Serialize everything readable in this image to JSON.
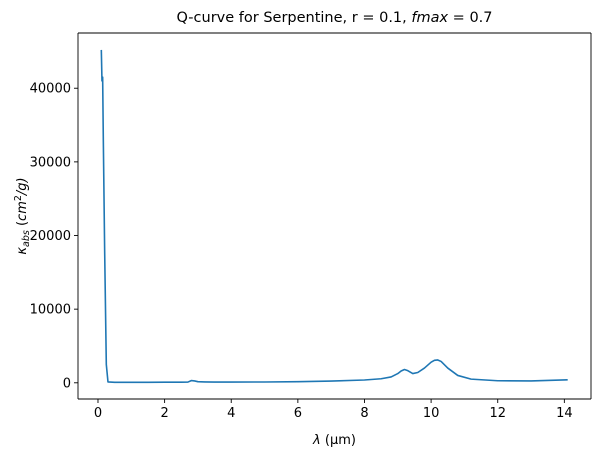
{
  "chart_data": {
    "type": "line",
    "title": "Q-curve for Serpentine, r = 0.1, ",
    "title_italic": "fmax",
    "title_tail": " = 0.7",
    "xlabel_symbol": "λ",
    "xlabel_unit": " (μm)",
    "ylabel_symbol": "κ",
    "ylabel_sub": "abs",
    "ylabel_unit_open": " (",
    "ylabel_unit_italic": "cm",
    "ylabel_unit_sup": "2",
    "ylabel_unit_close": "/g)",
    "xlim": [
      -0.6,
      14.8
    ],
    "ylim": [
      -2200,
      47500
    ],
    "grid": false,
    "line_color": "#1f77b4",
    "x_ticks": [
      {
        "value": 0,
        "label": "0"
      },
      {
        "value": 2,
        "label": "2"
      },
      {
        "value": 4,
        "label": "4"
      },
      {
        "value": 6,
        "label": "6"
      },
      {
        "value": 8,
        "label": "8"
      },
      {
        "value": 10,
        "label": "10"
      },
      {
        "value": 12,
        "label": "12"
      },
      {
        "value": 14,
        "label": "14"
      }
    ],
    "y_ticks": [
      {
        "value": 0,
        "label": "0"
      },
      {
        "value": 10000,
        "label": "10000"
      },
      {
        "value": 20000,
        "label": "20000"
      },
      {
        "value": 30000,
        "label": "30000"
      },
      {
        "value": 40000,
        "label": "40000"
      }
    ],
    "series": [
      {
        "x": [
          0.1,
          0.12,
          0.14,
          0.16,
          0.2,
          0.25,
          0.3,
          0.5,
          1.0,
          1.5,
          2.0,
          2.5,
          2.7,
          2.8,
          2.9,
          3.0,
          3.2,
          3.5,
          4.0,
          5.0,
          6.0,
          7.0,
          8.0,
          8.5,
          8.8,
          9.0,
          9.1,
          9.2,
          9.3,
          9.45,
          9.6,
          9.8,
          10.0,
          10.1,
          10.2,
          10.3,
          10.5,
          10.8,
          11.2,
          12.0,
          13.0,
          14.1
        ],
        "y": [
          45200,
          41000,
          41500,
          33000,
          18000,
          2500,
          120,
          60,
          60,
          70,
          80,
          80,
          100,
          300,
          250,
          150,
          120,
          100,
          100,
          110,
          150,
          230,
          380,
          550,
          800,
          1250,
          1600,
          1800,
          1650,
          1250,
          1400,
          2000,
          2800,
          3050,
          3100,
          2900,
          2000,
          1000,
          500,
          280,
          250,
          400
        ]
      }
    ]
  }
}
